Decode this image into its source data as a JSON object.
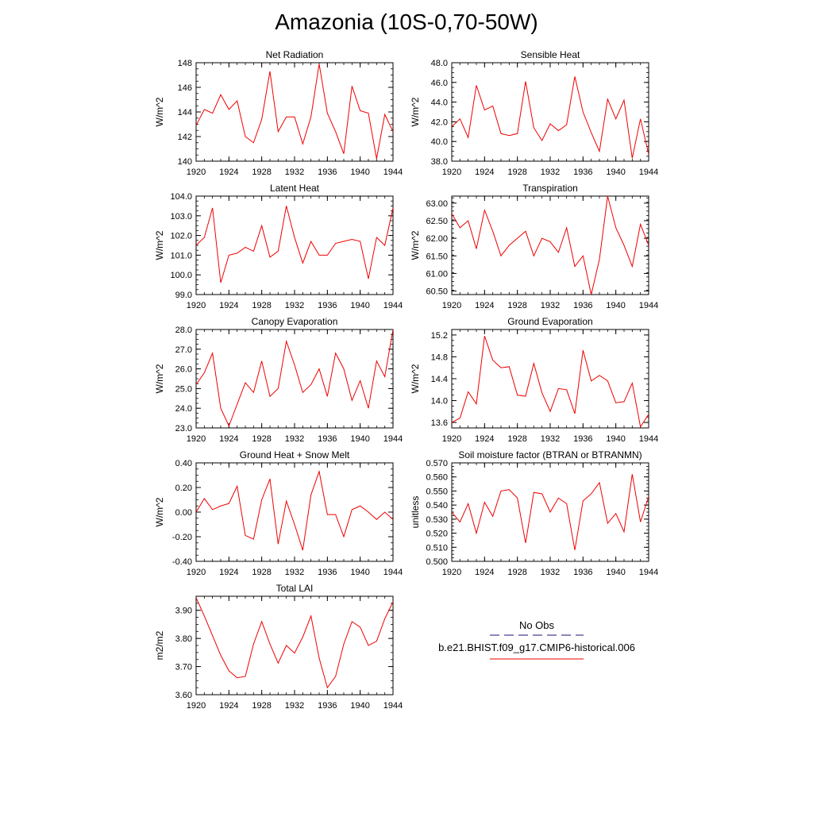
{
  "title": "Amazonia (10S-0,70-50W)",
  "colors": {
    "model_line": "#ee0000",
    "obs_line": "#4a3f8f"
  },
  "legend": {
    "obs_label": "No Obs",
    "model_label": "b.e21.BHIST.f09_g17.CMIP6-historical.006"
  },
  "chart_data": [
    {
      "type": "line",
      "title": "Net Radiation",
      "ylabel": "W/m^2",
      "xlim": [
        1920,
        1944
      ],
      "ylim": [
        140,
        148
      ],
      "xticks": [
        1920,
        1924,
        1928,
        1932,
        1936,
        1940,
        1944
      ],
      "xtick_labels": [
        "1920",
        "1924",
        "1928",
        "1932",
        "1936",
        "1940",
        "1944"
      ],
      "yticks": [
        140,
        142,
        144,
        146,
        148
      ],
      "ytick_labels": [
        "140",
        "142",
        "144",
        "146",
        "148"
      ],
      "x": [
        1920,
        1921,
        1922,
        1923,
        1924,
        1925,
        1926,
        1927,
        1928,
        1929,
        1930,
        1931,
        1932,
        1933,
        1934,
        1935,
        1936,
        1937,
        1938,
        1939,
        1940,
        1941,
        1942,
        1943,
        1944
      ],
      "series": [
        {
          "values": [
            142.9,
            144.2,
            143.9,
            145.4,
            144.2,
            144.9,
            142.0,
            141.5,
            143.4,
            147.3,
            142.4,
            143.6,
            143.6,
            141.4,
            143.6,
            147.9,
            143.9,
            142.4,
            140.6,
            146.1,
            144.1,
            143.9,
            140.2,
            143.8,
            142.4
          ]
        }
      ]
    },
    {
      "type": "line",
      "title": "Sensible Heat",
      "ylabel": "W/m^2",
      "xlim": [
        1920,
        1944
      ],
      "ylim": [
        38,
        48
      ],
      "xticks": [
        1920,
        1924,
        1928,
        1932,
        1936,
        1940,
        1944
      ],
      "xtick_labels": [
        "1920",
        "1924",
        "1928",
        "1932",
        "1936",
        "1940",
        "1944"
      ],
      "yticks": [
        38,
        40,
        42,
        44,
        46,
        48
      ],
      "ytick_labels": [
        "38.0",
        "40.0",
        "42.0",
        "44.0",
        "46.0",
        "48.0"
      ],
      "x": [
        1920,
        1921,
        1922,
        1923,
        1924,
        1925,
        1926,
        1927,
        1928,
        1929,
        1930,
        1931,
        1932,
        1933,
        1934,
        1935,
        1936,
        1937,
        1938,
        1939,
        1940,
        1941,
        1942,
        1943,
        1944
      ],
      "series": [
        {
          "values": [
            41.5,
            42.3,
            40.4,
            45.7,
            43.2,
            43.6,
            40.8,
            40.6,
            40.8,
            46.1,
            41.4,
            40.1,
            41.8,
            41.1,
            41.7,
            46.6,
            43.0,
            40.9,
            39.0,
            44.3,
            42.3,
            44.2,
            38.3,
            42.3,
            38.7
          ]
        }
      ]
    },
    {
      "type": "line",
      "title": "Latent Heat",
      "ylabel": "W/m^2",
      "xlim": [
        1920,
        1944
      ],
      "ylim": [
        99,
        104
      ],
      "xticks": [
        1920,
        1924,
        1928,
        1932,
        1936,
        1940,
        1944
      ],
      "xtick_labels": [
        "1920",
        "1924",
        "1928",
        "1932",
        "1936",
        "1940",
        "1944"
      ],
      "yticks": [
        99,
        100,
        101,
        102,
        103,
        104
      ],
      "ytick_labels": [
        "99.0",
        "100.0",
        "101.0",
        "102.0",
        "103.0",
        "104.0"
      ],
      "x": [
        1920,
        1921,
        1922,
        1923,
        1924,
        1925,
        1926,
        1927,
        1928,
        1929,
        1930,
        1931,
        1932,
        1933,
        1934,
        1935,
        1936,
        1937,
        1938,
        1939,
        1940,
        1941,
        1942,
        1943,
        1944
      ],
      "series": [
        {
          "values": [
            101.5,
            101.9,
            103.4,
            99.6,
            101.0,
            101.1,
            101.4,
            101.2,
            102.5,
            100.9,
            101.2,
            103.5,
            101.9,
            100.6,
            101.7,
            101.0,
            101.0,
            101.6,
            101.7,
            101.8,
            101.7,
            99.8,
            101.9,
            101.5,
            103.4
          ]
        }
      ]
    },
    {
      "type": "line",
      "title": "Transpiration",
      "ylabel": "W/m^2",
      "xlim": [
        1920,
        1944
      ],
      "ylim": [
        60.4,
        63.2
      ],
      "xticks": [
        1920,
        1924,
        1928,
        1932,
        1936,
        1940,
        1944
      ],
      "xtick_labels": [
        "1920",
        "1924",
        "1928",
        "1932",
        "1936",
        "1940",
        "1944"
      ],
      "yticks": [
        60.5,
        61,
        61.5,
        62,
        62.5,
        63
      ],
      "ytick_labels": [
        "60.50",
        "61.00",
        "61.50",
        "62.00",
        "62.50",
        "63.00"
      ],
      "x": [
        1920,
        1921,
        1922,
        1923,
        1924,
        1925,
        1926,
        1927,
        1928,
        1929,
        1930,
        1931,
        1932,
        1933,
        1934,
        1935,
        1936,
        1937,
        1938,
        1939,
        1940,
        1941,
        1942,
        1943,
        1944
      ],
      "series": [
        {
          "values": [
            62.7,
            62.3,
            62.5,
            61.7,
            62.8,
            62.2,
            61.5,
            61.8,
            62.0,
            62.2,
            61.5,
            62.0,
            61.9,
            61.6,
            62.3,
            61.2,
            61.5,
            60.4,
            61.4,
            63.2,
            62.3,
            61.8,
            61.2,
            62.4,
            61.8
          ]
        }
      ]
    },
    {
      "type": "line",
      "title": "Canopy Evaporation",
      "ylabel": "W/m^2",
      "xlim": [
        1920,
        1944
      ],
      "ylim": [
        23,
        28
      ],
      "xticks": [
        1920,
        1924,
        1928,
        1932,
        1936,
        1940,
        1944
      ],
      "xtick_labels": [
        "1920",
        "1924",
        "1928",
        "1932",
        "1936",
        "1940",
        "1944"
      ],
      "yticks": [
        23,
        24,
        25,
        26,
        27,
        28
      ],
      "ytick_labels": [
        "23.0",
        "24.0",
        "25.0",
        "26.0",
        "27.0",
        "28.0"
      ],
      "x": [
        1920,
        1921,
        1922,
        1923,
        1924,
        1925,
        1926,
        1927,
        1928,
        1929,
        1930,
        1931,
        1932,
        1933,
        1934,
        1935,
        1936,
        1937,
        1938,
        1939,
        1940,
        1941,
        1942,
        1943,
        1944
      ],
      "series": [
        {
          "values": [
            25.2,
            25.8,
            26.8,
            24.0,
            23.1,
            24.2,
            25.3,
            24.8,
            26.4,
            24.6,
            25.0,
            27.4,
            26.2,
            24.8,
            25.2,
            26.0,
            24.6,
            26.8,
            26.0,
            24.4,
            25.4,
            24.0,
            26.4,
            25.6,
            28.0
          ]
        }
      ]
    },
    {
      "type": "line",
      "title": "Ground Evaporation",
      "ylabel": "W/m^2",
      "xlim": [
        1920,
        1944
      ],
      "ylim": [
        13.5,
        15.3
      ],
      "xticks": [
        1920,
        1924,
        1928,
        1932,
        1936,
        1940,
        1944
      ],
      "xtick_labels": [
        "1920",
        "1924",
        "1928",
        "1932",
        "1936",
        "1940",
        "1944"
      ],
      "yticks": [
        13.6,
        14,
        14.4,
        14.8,
        15.2
      ],
      "ytick_labels": [
        "13.6",
        "14.0",
        "14.4",
        "14.8",
        "15.2"
      ],
      "x": [
        1920,
        1921,
        1922,
        1923,
        1924,
        1925,
        1926,
        1927,
        1928,
        1929,
        1930,
        1931,
        1932,
        1933,
        1934,
        1935,
        1936,
        1937,
        1938,
        1939,
        1940,
        1941,
        1942,
        1943,
        1944
      ],
      "series": [
        {
          "values": [
            13.6,
            13.68,
            14.16,
            13.94,
            15.18,
            14.74,
            14.6,
            14.62,
            14.1,
            14.08,
            14.68,
            14.14,
            13.8,
            14.22,
            14.2,
            13.76,
            14.92,
            14.36,
            14.46,
            14.36,
            13.96,
            13.98,
            14.32,
            13.52,
            13.75
          ]
        }
      ]
    },
    {
      "type": "line",
      "title": "Ground Heat + Snow Melt",
      "ylabel": "W/m^2",
      "xlim": [
        1920,
        1944
      ],
      "ylim": [
        -0.4,
        0.4
      ],
      "xticks": [
        1920,
        1924,
        1928,
        1932,
        1936,
        1940,
        1944
      ],
      "xtick_labels": [
        "1920",
        "1924",
        "1928",
        "1932",
        "1936",
        "1940",
        "1944"
      ],
      "yticks": [
        -0.4,
        -0.2,
        0,
        0.2,
        0.4
      ],
      "ytick_labels": [
        "-0.40",
        "-0.20",
        "0.00",
        "0.20",
        "0.40"
      ],
      "x": [
        1920,
        1921,
        1922,
        1923,
        1924,
        1925,
        1926,
        1927,
        1928,
        1929,
        1930,
        1931,
        1932,
        1933,
        1934,
        1935,
        1936,
        1937,
        1938,
        1939,
        1940,
        1941,
        1942,
        1943,
        1944
      ],
      "series": [
        {
          "values": [
            0.0,
            0.11,
            0.02,
            0.05,
            0.07,
            0.21,
            -0.19,
            -0.22,
            0.1,
            0.27,
            -0.26,
            0.09,
            -0.1,
            -0.31,
            0.14,
            0.33,
            -0.02,
            -0.02,
            -0.2,
            0.02,
            0.05,
            0.0,
            -0.06,
            0.0,
            -0.06
          ]
        }
      ]
    },
    {
      "type": "line",
      "title": "Soil moisture factor (BTRAN or BTRANMN)",
      "ylabel": "unitless",
      "xlim": [
        1920,
        1944
      ],
      "ylim": [
        0.5,
        0.57
      ],
      "xticks": [
        1920,
        1924,
        1928,
        1932,
        1936,
        1940,
        1944
      ],
      "xtick_labels": [
        "1920",
        "1924",
        "1928",
        "1932",
        "1936",
        "1940",
        "1944"
      ],
      "yticks": [
        0.5,
        0.51,
        0.52,
        0.53,
        0.54,
        0.55,
        0.56,
        0.57
      ],
      "ytick_labels": [
        "0.500",
        "0.510",
        "0.520",
        "0.530",
        "0.540",
        "0.550",
        "0.560",
        "0.570"
      ],
      "x": [
        1920,
        1921,
        1922,
        1923,
        1924,
        1925,
        1926,
        1927,
        1928,
        1929,
        1930,
        1931,
        1932,
        1933,
        1934,
        1935,
        1936,
        1937,
        1938,
        1939,
        1940,
        1941,
        1942,
        1943,
        1944
      ],
      "series": [
        {
          "values": [
            0.535,
            0.528,
            0.541,
            0.52,
            0.542,
            0.532,
            0.55,
            0.551,
            0.545,
            0.513,
            0.549,
            0.548,
            0.535,
            0.545,
            0.541,
            0.508,
            0.543,
            0.548,
            0.556,
            0.527,
            0.534,
            0.521,
            0.562,
            0.528,
            0.546
          ]
        }
      ]
    },
    {
      "type": "line",
      "title": "Total LAI",
      "ylabel": "m2/m2",
      "xlim": [
        1920,
        1944
      ],
      "ylim": [
        3.6,
        3.95
      ],
      "xticks": [
        1920,
        1924,
        1928,
        1932,
        1936,
        1940,
        1944
      ],
      "xtick_labels": [
        "1920",
        "1924",
        "1928",
        "1932",
        "1936",
        "1940",
        "1944"
      ],
      "yticks": [
        3.6,
        3.7,
        3.8,
        3.9
      ],
      "ytick_labels": [
        "3.60",
        "3.70",
        "3.80",
        "3.90"
      ],
      "x": [
        1920,
        1921,
        1922,
        1923,
        1924,
        1925,
        1926,
        1927,
        1928,
        1929,
        1930,
        1931,
        1932,
        1933,
        1934,
        1935,
        1936,
        1937,
        1938,
        1939,
        1940,
        1941,
        1942,
        1943,
        1944
      ],
      "series": [
        {
          "values": [
            3.945,
            3.88,
            3.81,
            3.74,
            3.685,
            3.66,
            3.665,
            3.78,
            3.86,
            3.78,
            3.712,
            3.775,
            3.748,
            3.805,
            3.88,
            3.73,
            3.625,
            3.665,
            3.78,
            3.86,
            3.84,
            3.775,
            3.79,
            3.87,
            3.93
          ]
        }
      ]
    }
  ]
}
